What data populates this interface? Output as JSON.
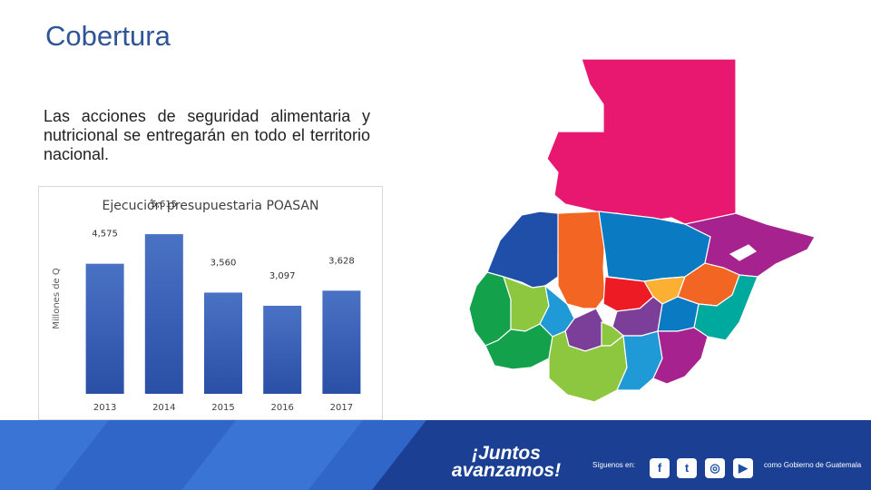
{
  "slide": {
    "title": "Cobertura",
    "body": "Las acciones de seguridad alimentaria y nutricional se entregarán en todo el territorio nacional."
  },
  "chart_data": {
    "type": "bar",
    "title": "Ejecución presupuestaria POASAN",
    "xlabel": "",
    "ylabel": "Millones de Q",
    "categories": [
      "2013",
      "2014",
      "2015",
      "2016",
      "2017"
    ],
    "values": [
      4575,
      5615,
      3560,
      3097,
      3628
    ],
    "value_labels": [
      "4,575",
      "5,615",
      "3,560",
      "3,097",
      "3,628"
    ],
    "ylim": [
      0,
      6000
    ],
    "grid": false,
    "bar_color_top": "#4a72c4",
    "bar_color_bottom": "#2a4fa6"
  },
  "footer": {
    "slogan_line1": "¡Juntos",
    "slogan_line2": "avanzamos!",
    "follow_label": "Síguenos en:",
    "social": [
      {
        "icon": "facebook-icon",
        "glyph": "f"
      },
      {
        "icon": "twitter-icon",
        "glyph": "t"
      },
      {
        "icon": "instagram-icon",
        "glyph": "◎"
      },
      {
        "icon": "youtube-icon",
        "glyph": "▶"
      }
    ],
    "gov_label": "como Gobierno de Guatemala",
    "colors": {
      "dark": "#1b3f93",
      "mid": "#2a5bbf",
      "light": "#3a75d6"
    }
  },
  "map": {
    "colors": [
      "#e8176f",
      "#1f4fa8",
      "#f26522",
      "#14a14b",
      "#8dc63f",
      "#1f9ad6",
      "#7b3f9a",
      "#ed1c24",
      "#fbb034",
      "#0a7ac2",
      "#a6228e",
      "#00a99d"
    ]
  }
}
